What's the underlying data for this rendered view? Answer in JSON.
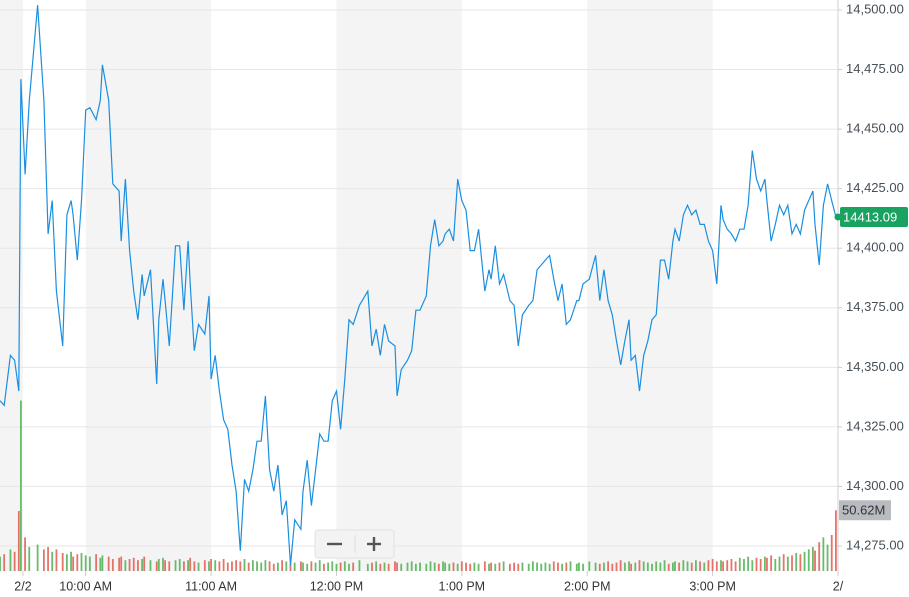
{
  "chart_data": {
    "type": "line",
    "x": [
      559,
      561,
      564,
      566,
      568,
      569,
      571,
      573,
      577,
      580,
      582,
      584,
      586,
      589,
      591,
      593,
      594,
      596,
      598,
      600,
      602,
      605,
      607,
      608,
      611,
      613,
      616,
      617,
      619,
      621,
      623,
      625,
      627,
      628,
      631,
      634,
      635,
      637,
      638,
      640,
      643,
      645,
      647,
      649,
      650,
      652,
      654,
      657,
      659,
      660,
      662,
      664,
      666,
      668,
      670,
      672,
      674,
      676,
      678,
      680,
      682,
      684,
      686,
      688,
      690,
      692,
      694,
      696,
      698,
      700,
      703,
      704,
      706,
      708,
      710,
      712,
      714,
      716,
      718,
      720,
      722,
      724,
      726,
      728,
      731,
      735,
      737,
      739,
      741,
      743,
      745,
      748,
      749,
      751,
      754,
      756,
      758,
      760,
      763,
      765,
      767,
      769,
      771,
      772,
      774,
      776,
      778,
      780,
      782,
      784,
      786,
      788,
      791,
      793,
      794,
      796,
      798,
      800,
      803,
      805,
      807,
      809,
      812,
      814,
      816,
      818,
      820,
      822,
      824,
      826,
      828,
      830,
      832,
      835,
      836,
      838,
      841,
      844,
      846,
      848,
      850,
      852,
      854,
      856,
      858,
      860,
      861,
      863,
      865,
      867,
      869,
      871,
      873,
      875,
      877,
      879,
      881,
      882,
      884,
      886,
      888,
      890,
      892,
      894,
      896,
      898,
      900,
      902,
      904,
      905,
      907,
      909,
      911,
      913,
      915,
      917,
      919,
      921,
      923,
      925,
      926,
      928,
      930,
      932,
      934,
      936,
      938,
      940,
      942,
      944,
      946,
      948,
      949,
      951,
      953,
      955,
      957,
      959
    ],
    "series": [
      {
        "color": "#1a8fe0",
        "values": [
          14336,
          14334,
          14355,
          14353,
          14340,
          14471,
          14431,
          14462,
          14502,
          14462,
          14406,
          14420,
          14382,
          14359,
          14414,
          14420,
          14414,
          14395,
          14420,
          14458,
          14459,
          14454,
          14462,
          14477,
          14462,
          14427,
          14424,
          14403,
          14429,
          14399,
          14382,
          14370,
          14389,
          14380,
          14391,
          14343,
          14370,
          14387,
          14378,
          14359,
          14401,
          14401,
          14374,
          14403,
          14385,
          14357,
          14368,
          14364,
          14380,
          14345,
          14355,
          14340,
          14328,
          14324,
          14309,
          14298,
          14273,
          14303,
          14298,
          14307,
          14319,
          14319,
          14338,
          14307,
          14298,
          14309,
          14288,
          14294,
          14267,
          14286,
          14282,
          14298,
          14311,
          14292,
          14307,
          14322,
          14319,
          14319,
          14336,
          14340,
          14324,
          14345,
          14370,
          14368,
          14376,
          14382,
          14359,
          14366,
          14355,
          14368,
          14361,
          14359,
          14338,
          14349,
          14353,
          14357,
          14374,
          14374,
          14380,
          14401,
          14412,
          14401,
          14403,
          14406,
          14408,
          14403,
          14429,
          14420,
          14416,
          14399,
          14399,
          14408,
          14382,
          14391,
          14387,
          14401,
          14385,
          14389,
          14378,
          14376,
          14359,
          14372,
          14376,
          14378,
          14391,
          14393,
          14395,
          14397,
          14387,
          14378,
          14385,
          14368,
          14370,
          14378,
          14378,
          14385,
          14387,
          14397,
          14378,
          14391,
          14378,
          14372,
          14361,
          14351,
          14361,
          14370,
          14353,
          14355,
          14340,
          14355,
          14361,
          14370,
          14372,
          14395,
          14395,
          14387,
          14403,
          14408,
          14403,
          14414,
          14418,
          14414,
          14416,
          14410,
          14410,
          14403,
          14399,
          14385,
          14418,
          14412,
          14408,
          14406,
          14403,
          14408,
          14408,
          14418,
          14441,
          14429,
          14424,
          14429,
          14420,
          14403,
          14410,
          14418,
          14414,
          14418,
          14406,
          14410,
          14406,
          14416,
          14420,
          14424,
          14410,
          14393,
          14418,
          14427,
          14420,
          14413.09
        ]
      }
    ],
    "xlim": [
      559,
      960
    ],
    "xticks": [
      {
        "value": 570,
        "label": "2/2"
      },
      {
        "value": 600,
        "label": "10:00 AM"
      },
      {
        "value": 660,
        "label": "11:00 AM"
      },
      {
        "value": 720,
        "label": "12:00 PM"
      },
      {
        "value": 780,
        "label": "1:00 PM"
      },
      {
        "value": 840,
        "label": "2:00 PM"
      },
      {
        "value": 900,
        "label": "3:00 PM"
      },
      {
        "value": 960,
        "label": "2/"
      }
    ],
    "ylim": [
      14264.5,
      14504.2
    ],
    "yticks": [
      {
        "value": 14275,
        "label": "14,275.00"
      },
      {
        "value": 14300,
        "label": "14,300.00"
      },
      {
        "value": 14325,
        "label": "14,325.00"
      },
      {
        "value": 14350,
        "label": "14,350.00"
      },
      {
        "value": 14375,
        "label": "14,375.00"
      },
      {
        "value": 14400,
        "label": "14,400.00"
      },
      {
        "value": 14425,
        "label": "14,425.00"
      },
      {
        "value": 14450,
        "label": "14,450.00"
      },
      {
        "value": 14475,
        "label": "14,475.00"
      },
      {
        "value": 14500,
        "label": "14,500.00"
      }
    ],
    "grid": true,
    "volume": {
      "up_color": "#4caf50",
      "down_color": "#e05a50",
      "values": [
        12,
        14,
        18,
        16,
        50,
        142,
        28,
        20,
        22,
        18,
        20,
        16,
        18,
        15,
        14,
        16,
        12,
        14,
        15,
        13,
        12,
        14,
        11,
        13,
        12,
        10,
        11,
        12,
        9,
        10,
        11,
        9,
        10,
        12,
        9,
        8,
        10,
        11,
        9,
        8,
        9,
        10,
        8,
        9,
        11,
        8,
        7,
        9,
        8,
        10,
        9,
        8,
        10,
        7,
        8,
        9,
        8,
        10,
        7,
        9,
        8,
        7,
        9,
        8,
        6,
        7,
        9,
        8,
        6,
        7,
        8,
        7,
        6,
        8,
        7,
        9,
        6,
        7,
        8,
        6,
        7,
        8,
        6,
        7,
        9,
        6,
        7,
        8,
        6,
        7,
        6,
        8,
        7,
        6,
        7,
        8,
        6,
        7,
        6,
        8,
        7,
        6,
        8,
        7,
        6,
        7,
        6,
        8,
        7,
        6,
        7,
        6,
        8,
        6,
        7,
        6,
        7,
        8,
        6,
        7,
        6,
        7,
        6,
        8,
        7,
        6,
        7,
        6,
        8,
        7,
        6,
        7,
        8,
        6,
        7,
        6,
        8,
        7,
        6,
        7,
        8,
        6,
        7,
        9,
        7,
        8,
        6,
        7,
        9,
        8,
        7,
        6,
        8,
        7,
        9,
        6,
        7,
        8,
        7,
        9,
        8,
        7,
        9,
        8,
        7,
        9,
        10,
        8,
        9,
        8,
        9,
        10,
        8,
        11,
        10,
        12,
        9,
        11,
        10,
        12,
        11,
        13,
        10,
        12,
        14,
        12,
        13,
        15,
        14,
        16,
        18,
        20,
        17,
        24,
        28,
        22,
        30,
        50.62
      ]
    },
    "y2lim": [
      0,
      150
    ],
    "last_price": 14413.09,
    "last_price_color": "#1aa260",
    "last_volume": {
      "value": 50.62,
      "label": "50.62M"
    }
  }
}
